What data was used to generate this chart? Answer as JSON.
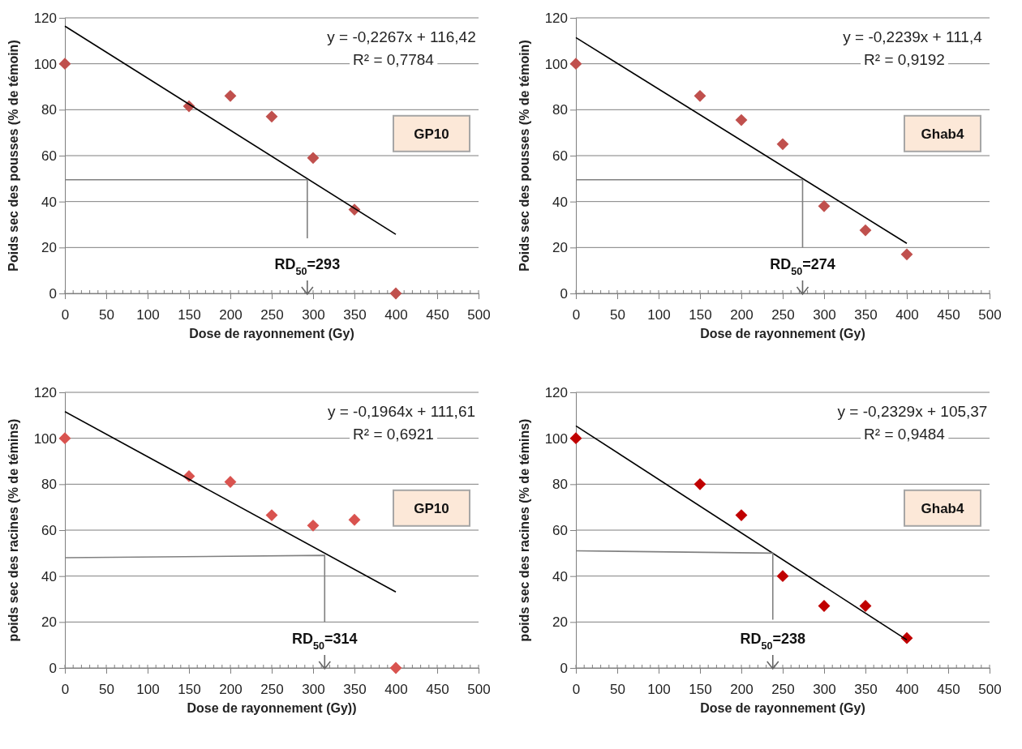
{
  "chart_data": [
    {
      "type": "scatter",
      "xlabel": "Dose de rayonnement (Gy)",
      "ylabel": "Poids sec des pousses (% de témoin)",
      "xlim": [
        0,
        500
      ],
      "ylim": [
        0,
        120
      ],
      "xticks": [
        0,
        50,
        100,
        150,
        200,
        250,
        300,
        350,
        400,
        450,
        500
      ],
      "yticks": [
        0,
        20,
        40,
        60,
        80,
        100,
        120
      ],
      "grid": "y",
      "marker": "diamond",
      "series": [
        {
          "color": "#c0504d",
          "x": [
            0,
            150,
            200,
            250,
            300,
            350,
            400
          ],
          "values": [
            100,
            81.5,
            86,
            77,
            59,
            36.5,
            0
          ]
        },
        {
          "type": "line",
          "marker": "none",
          "color": "#000000",
          "x": [
            0,
            400
          ],
          "values": [
            116.4,
            25.7
          ]
        },
        {
          "type": "line",
          "marker": "none",
          "color": "#808080",
          "x": [
            0,
            293,
            293
          ],
          "values": [
            49.5,
            49.5,
            24
          ]
        }
      ],
      "annotations": [
        "y = -0,2267x + 116,42",
        "R² = 0,7784",
        "GP10",
        "RD$_{50}$=293"
      ]
    },
    {
      "type": "scatter",
      "xlabel": "Dose de rayonnement (Gy)",
      "ylabel": "Poids sec des pousses (% de témoin)",
      "xlim": [
        0,
        500
      ],
      "ylim": [
        0,
        120
      ],
      "xticks": [
        0,
        50,
        100,
        150,
        200,
        250,
        300,
        350,
        400,
        450,
        500
      ],
      "yticks": [
        0,
        20,
        40,
        60,
        80,
        100,
        120
      ],
      "grid": "y",
      "marker": "diamond",
      "series": [
        {
          "color": "#c0504d",
          "x": [
            0,
            150,
            200,
            250,
            300,
            350,
            400
          ],
          "values": [
            100,
            86,
            75.5,
            65,
            38,
            27.5,
            17
          ]
        },
        {
          "type": "line",
          "marker": "none",
          "color": "#000000",
          "x": [
            0,
            400
          ],
          "values": [
            111.4,
            21.8
          ]
        },
        {
          "type": "line",
          "marker": "none",
          "color": "#808080",
          "x": [
            0,
            274,
            274
          ],
          "values": [
            49.5,
            49.5,
            20
          ]
        }
      ],
      "annotations": [
        "y = -0,2239x + 111,4",
        "R² = 0,9192",
        "Ghab4",
        "RD$_{50}$=274"
      ]
    },
    {
      "type": "scatter",
      "xlabel": "Dose de rayonnement (Gy))",
      "ylabel": "poids sec des racines (% de témins)",
      "xlim": [
        0,
        500
      ],
      "ylim": [
        0,
        120
      ],
      "xticks": [
        0,
        50,
        100,
        150,
        200,
        250,
        300,
        350,
        400,
        450,
        500
      ],
      "yticks": [
        0,
        20,
        40,
        60,
        80,
        100,
        120
      ],
      "grid": "y",
      "marker": "diamond",
      "series": [
        {
          "color": "#d9534f",
          "x": [
            0,
            150,
            200,
            250,
            300,
            350,
            400
          ],
          "values": [
            100,
            83.5,
            81,
            66.5,
            62,
            64.5,
            0
          ]
        },
        {
          "type": "line",
          "marker": "none",
          "color": "#000000",
          "x": [
            0,
            400
          ],
          "values": [
            111.6,
            33.1
          ]
        },
        {
          "type": "line",
          "marker": "none",
          "color": "#808080",
          "x": [
            0,
            314,
            314
          ],
          "values": [
            48,
            49,
            20
          ]
        }
      ],
      "annotations": [
        "y = -0,1964x + 111,61",
        "R² = 0,6921",
        "GP10",
        "RD$_{50}$=314"
      ]
    },
    {
      "type": "scatter",
      "xlabel": "Dose de rayonnement (Gy)",
      "ylabel": "poids sec des racines (% de témins)",
      "xlim": [
        0,
        500
      ],
      "ylim": [
        0,
        120
      ],
      "xticks": [
        0,
        50,
        100,
        150,
        200,
        250,
        300,
        350,
        400,
        450,
        500
      ],
      "yticks": [
        0,
        20,
        40,
        60,
        80,
        100,
        120
      ],
      "grid": "y",
      "marker": "diamond",
      "series": [
        {
          "color": "#c00000",
          "x": [
            0,
            150,
            200,
            250,
            300,
            350,
            400
          ],
          "values": [
            100,
            80,
            66.5,
            40,
            27,
            27,
            13
          ]
        },
        {
          "type": "line",
          "marker": "none",
          "color": "#000000",
          "x": [
            0,
            400
          ],
          "values": [
            105.4,
            12.2
          ]
        },
        {
          "type": "line",
          "marker": "none",
          "color": "#808080",
          "x": [
            0,
            238,
            238
          ],
          "values": [
            51,
            50,
            21
          ]
        }
      ],
      "annotations": [
        "y = -0,2329x + 105,37",
        "R² = 0,9484",
        "Ghab4",
        "RD$_{50}$=238"
      ]
    }
  ]
}
